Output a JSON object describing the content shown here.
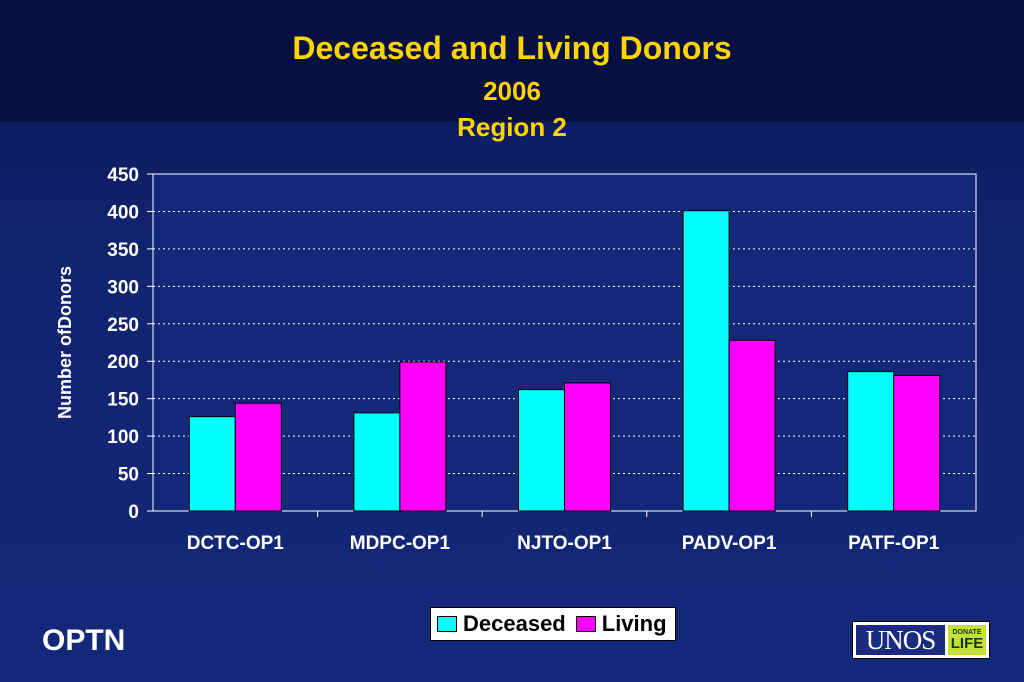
{
  "chart_data": {
    "type": "bar",
    "title": "Deceased and Living Donors",
    "subtitle": [
      "2006",
      "Region 2"
    ],
    "ylabel": "Number ofDonors",
    "xlabel": "",
    "ylim": [
      0,
      450
    ],
    "yticks": [
      0,
      50,
      100,
      150,
      200,
      250,
      300,
      350,
      400,
      450
    ],
    "categories": [
      "DCTC-OP1",
      "MDPC-OP1",
      "NJTO-OP1",
      "PADV-OP1",
      "PATF-OP1"
    ],
    "series": [
      {
        "name": "Deceased",
        "color": "#00ffff",
        "values": [
          126,
          131,
          162,
          401,
          186
        ]
      },
      {
        "name": "Living",
        "color": "#ff00ff",
        "values": [
          144,
          199,
          171,
          228,
          181
        ]
      }
    ],
    "grid": true,
    "legend_position": "bottom",
    "background": "#14287a"
  },
  "footer": {
    "org_text": "OPTN",
    "logo_text": "UNOS",
    "badge_line1": "DONATE",
    "badge_line2": "LIFE"
  }
}
